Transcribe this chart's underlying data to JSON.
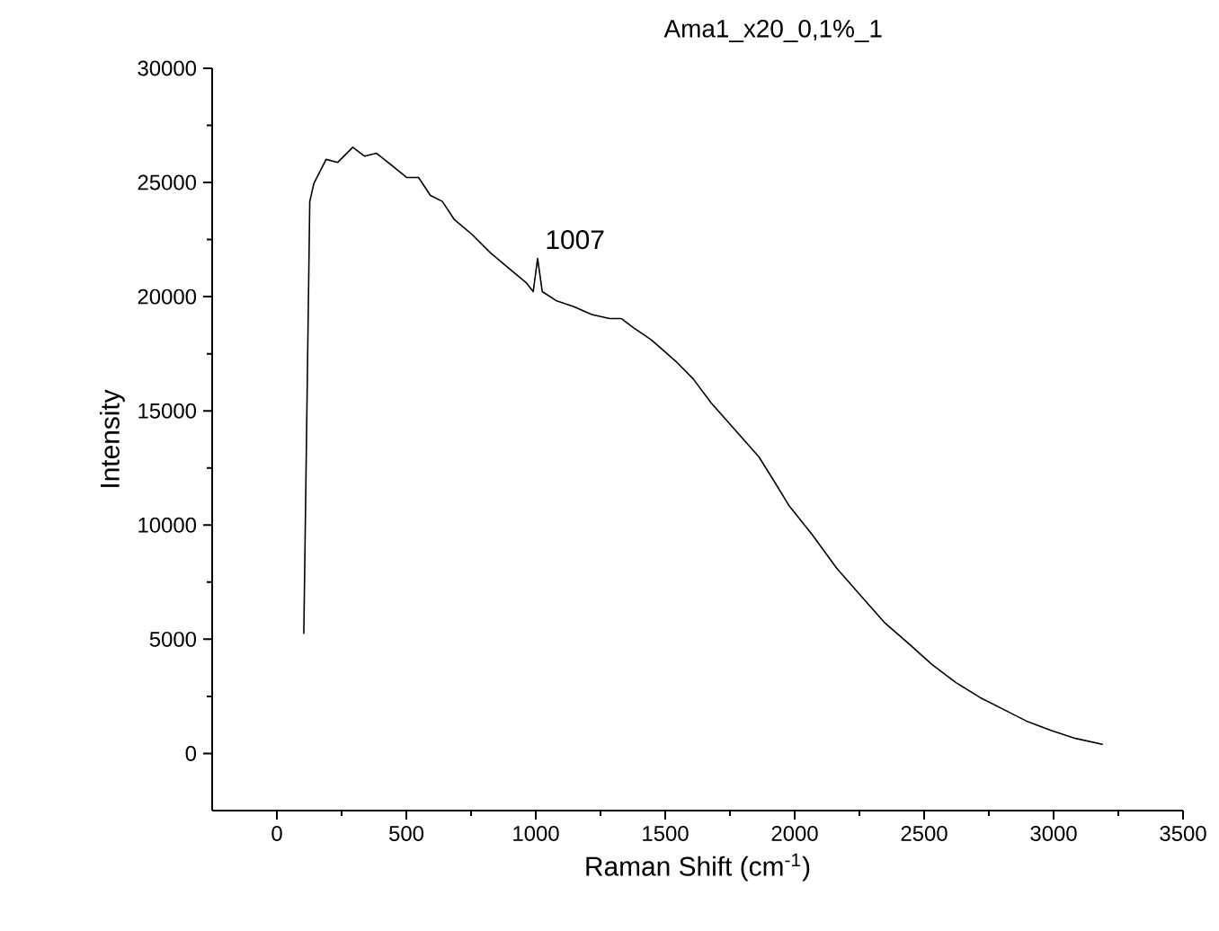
{
  "chart_data": {
    "type": "line",
    "title": "Ama1_x20_0,1%_1",
    "xlabel": "Raman Shift (cm$^{-1}$)",
    "ylabel": "Intensity",
    "color": "#000000",
    "x": [
      104,
      127,
      143,
      190,
      235,
      293,
      339,
      385,
      443,
      501,
      547,
      593,
      639,
      685,
      754,
      824,
      893,
      962,
      990,
      1007,
      1025,
      1078,
      1147,
      1216,
      1285,
      1331,
      1377,
      1446,
      1539,
      1608,
      1677,
      1770,
      1862,
      1920,
      1977,
      2069,
      2162,
      2254,
      2346,
      2439,
      2531,
      2623,
      2716,
      2808,
      2900,
      2992,
      3084,
      3188
    ],
    "values": [
      5260,
      24170,
      24960,
      26010,
      25880,
      26540,
      26150,
      26280,
      25750,
      25220,
      25220,
      24430,
      24170,
      23380,
      22720,
      21930,
      21270,
      20620,
      20220,
      21670,
      20220,
      19830,
      19560,
      19220,
      19040,
      19040,
      18640,
      18110,
      17190,
      16400,
      15350,
      14160,
      12980,
      11930,
      10870,
      9560,
      8110,
      6920,
      5740,
      4820,
      3890,
      3100,
      2450,
      1920,
      1390,
      1000,
      660,
      400
    ],
    "xlim": [
      -250,
      3500
    ],
    "ylim": [
      -2500,
      30000
    ],
    "xticks": [
      0,
      500,
      1000,
      1500,
      2000,
      2500,
      3000,
      3500
    ],
    "yticks": [
      0,
      5000,
      10000,
      15000,
      20000,
      25000,
      30000
    ],
    "annotations": [
      {
        "text": "1007",
        "x": 1007,
        "y": 21670
      }
    ]
  }
}
